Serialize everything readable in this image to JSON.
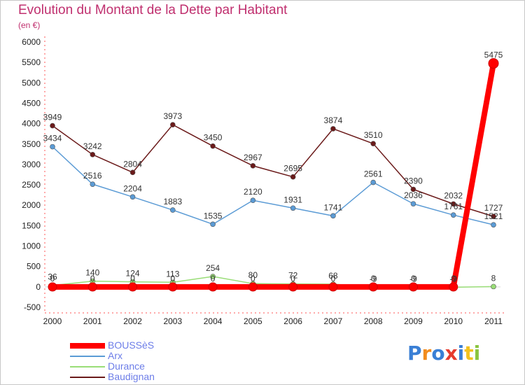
{
  "chart_data": {
    "type": "line",
    "title": "Evolution du Montant de la Dette par Habitant",
    "subtitle": "(en €)",
    "categories": [
      "2000",
      "2001",
      "2002",
      "2003",
      "2004",
      "2005",
      "2006",
      "2007",
      "2008",
      "2009",
      "2010",
      "2011"
    ],
    "yticks": [
      -500,
      0,
      500,
      1000,
      1500,
      2000,
      2500,
      3000,
      3500,
      4000,
      4500,
      5000,
      5500,
      6000
    ],
    "ylim": [
      -500,
      6000
    ],
    "grid": false,
    "legend_position": "bottom-left",
    "series": [
      {
        "name": "BOUSSèS",
        "color": "#ff0000",
        "bold": true,
        "values": [
          0,
          0,
          0,
          0,
          0,
          0,
          0,
          0,
          0,
          0,
          0,
          5475
        ],
        "labels": [
          "0",
          "0",
          "0",
          "0",
          "0",
          "0",
          "0",
          "0",
          "0",
          "0",
          "0",
          "5475"
        ]
      },
      {
        "name": "Arx",
        "color": "#5b9bd5",
        "bold": false,
        "values": [
          3434,
          2516,
          2204,
          1883,
          1535,
          2120,
          1931,
          1741,
          2561,
          2036,
          1761,
          1521
        ],
        "labels": [
          "3434",
          "2516",
          "2204",
          "1883",
          "1535",
          "2120",
          "1931",
          "1741",
          "2561",
          "2036",
          "1761",
          "1521"
        ]
      },
      {
        "name": "Durance",
        "color": "#99dd77",
        "bold": false,
        "values": [
          36,
          140,
          124,
          113,
          254,
          80,
          72,
          68,
          -9,
          -9,
          -9,
          8
        ],
        "labels": [
          "36",
          "140",
          "124",
          "113",
          "254",
          "80",
          "72",
          "68",
          "-9",
          "-9",
          "-9",
          "8"
        ]
      },
      {
        "name": "Baudignan",
        "color": "#6b1a1a",
        "bold": false,
        "values": [
          3949,
          3242,
          2804,
          3973,
          3450,
          2967,
          2695,
          3874,
          3510,
          2390,
          2032,
          1727
        ],
        "labels": [
          "3949",
          "3242",
          "2804",
          "3973",
          "3450",
          "2967",
          "2695",
          "3874",
          "3510",
          "2390",
          "2032",
          "1727"
        ]
      }
    ]
  },
  "logo": {
    "text": "Proxiti"
  }
}
